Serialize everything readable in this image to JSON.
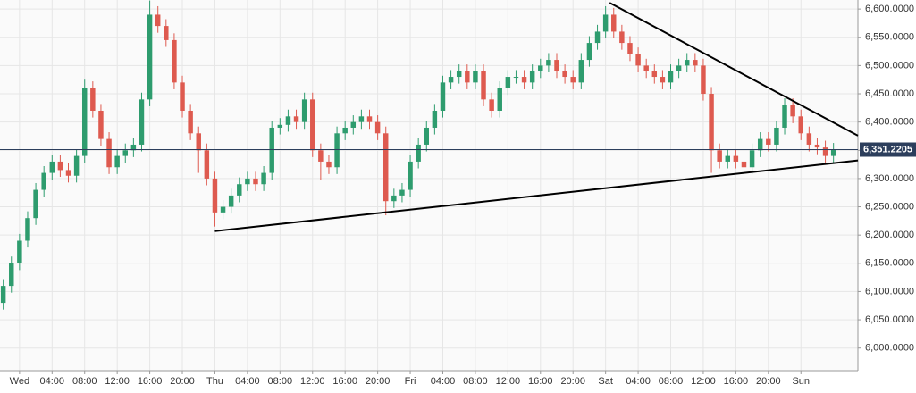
{
  "chart_data": {
    "type": "candlestick",
    "colors": {
      "up": "#2e9c6e",
      "down": "#de5a4f"
    },
    "xlim": [
      -2.4,
      103
    ],
    "ylim": [
      5960,
      6616
    ],
    "grid": true,
    "xticks": [
      {
        "value": 0,
        "label": "Wed"
      },
      {
        "value": 4,
        "label": "04:00"
      },
      {
        "value": 8,
        "label": "08:00"
      },
      {
        "value": 12,
        "label": "12:00"
      },
      {
        "value": 16,
        "label": "16:00"
      },
      {
        "value": 20,
        "label": "20:00"
      },
      {
        "value": 24,
        "label": "Thu"
      },
      {
        "value": 28,
        "label": "04:00"
      },
      {
        "value": 32,
        "label": "08:00"
      },
      {
        "value": 36,
        "label": "12:00"
      },
      {
        "value": 40,
        "label": "16:00"
      },
      {
        "value": 44,
        "label": "20:00"
      },
      {
        "value": 48,
        "label": "Fri"
      },
      {
        "value": 52,
        "label": "04:00"
      },
      {
        "value": 56,
        "label": "08:00"
      },
      {
        "value": 60,
        "label": "12:00"
      },
      {
        "value": 64,
        "label": "16:00"
      },
      {
        "value": 68,
        "label": "20:00"
      },
      {
        "value": 72,
        "label": "Sat"
      },
      {
        "value": 76,
        "label": "04:00"
      },
      {
        "value": 80,
        "label": "08:00"
      },
      {
        "value": 84,
        "label": "12:00"
      },
      {
        "value": 88,
        "label": "16:00"
      },
      {
        "value": 92,
        "label": "20:00"
      },
      {
        "value": 96,
        "label": "Sun"
      }
    ],
    "yticks": [
      {
        "value": 6000,
        "label": "6,000.0000"
      },
      {
        "value": 6050,
        "label": "6,050.0000"
      },
      {
        "value": 6100,
        "label": "6,100.0000"
      },
      {
        "value": 6150,
        "label": "6,150.0000"
      },
      {
        "value": 6200,
        "label": "6,200.0000"
      },
      {
        "value": 6250,
        "label": "6,250.0000"
      },
      {
        "value": 6300,
        "label": "6,300.0000"
      },
      {
        "value": 6350,
        "label": "6,350.0000"
      },
      {
        "value": 6400,
        "label": "6,400.0000"
      },
      {
        "value": 6450,
        "label": "6,450.0000"
      },
      {
        "value": 6500,
        "label": "6,500.0000"
      },
      {
        "value": 6550,
        "label": "6,550.0000"
      },
      {
        "value": 6600,
        "label": "6,600.0000"
      }
    ],
    "current_price": {
      "value": 6351.2205,
      "label": "6,351.2205"
    },
    "trendlines": [
      {
        "x": [
          24,
          103
        ],
        "y": [
          6207,
          6332
        ]
      },
      {
        "x": [
          72.5,
          103
        ],
        "y": [
          6611,
          6376
        ]
      }
    ],
    "x": [
      -2,
      -1,
      0,
      1,
      2,
      3,
      4,
      5,
      6,
      7,
      8,
      9,
      10,
      11,
      12,
      13,
      14,
      15,
      16,
      17,
      18,
      19,
      20,
      21,
      22,
      23,
      24,
      25,
      26,
      27,
      28,
      29,
      30,
      31,
      32,
      33,
      34,
      35,
      36,
      37,
      38,
      39,
      40,
      41,
      42,
      43,
      44,
      45,
      46,
      47,
      48,
      49,
      50,
      51,
      52,
      53,
      54,
      55,
      56,
      57,
      58,
      59,
      60,
      61,
      62,
      63,
      64,
      65,
      66,
      67,
      68,
      69,
      70,
      71,
      72,
      73,
      74,
      75,
      76,
      77,
      78,
      79,
      80,
      81,
      82,
      83,
      84,
      85,
      86,
      87,
      88,
      89,
      90,
      91,
      92,
      93,
      94,
      95,
      96,
      97,
      98,
      99,
      100
    ],
    "open": [
      6080,
      6110,
      6150,
      6190,
      6230,
      6280,
      6310,
      6330,
      6315,
      6305,
      6340,
      6460,
      6420,
      6370,
      6320,
      6340,
      6350,
      6360,
      6440,
      6590,
      6570,
      6545,
      6470,
      6420,
      6380,
      6350,
      6300,
      6240,
      6250,
      6270,
      6290,
      6300,
      6290,
      6310,
      6390,
      6395,
      6410,
      6400,
      6440,
      6350,
      6330,
      6320,
      6380,
      6390,
      6400,
      6410,
      6400,
      6380,
      6260,
      6270,
      6280,
      6330,
      6360,
      6390,
      6420,
      6470,
      6480,
      6490,
      6470,
      6490,
      6440,
      6420,
      6460,
      6480,
      6480,
      6470,
      6490,
      6500,
      6510,
      6490,
      6480,
      6470,
      6510,
      6540,
      6560,
      6590,
      6560,
      6540,
      6520,
      6500,
      6490,
      6480,
      6470,
      6490,
      6500,
      6510,
      6500,
      6450,
      6350,
      6330,
      6340,
      6330,
      6320,
      6350,
      6370,
      6360,
      6390,
      6430,
      6410,
      6380,
      6360,
      6355,
      6340
    ],
    "high": [
      6122,
      6162,
      6202,
      6242,
      6292,
      6322,
      6342,
      6342,
      6327,
      6352,
      6475,
      6472,
      6432,
      6382,
      6352,
      6362,
      6372,
      6452,
      6615,
      6605,
      6582,
      6557,
      6482,
      6432,
      6392,
      6362,
      6312,
      6262,
      6282,
      6302,
      6312,
      6312,
      6322,
      6402,
      6407,
      6422,
      6422,
      6452,
      6452,
      6362,
      6342,
      6392,
      6402,
      6412,
      6422,
      6422,
      6412,
      6392,
      6282,
      6292,
      6342,
      6372,
      6402,
      6432,
      6482,
      6492,
      6502,
      6502,
      6502,
      6502,
      6452,
      6472,
      6492,
      6492,
      6492,
      6502,
      6512,
      6522,
      6522,
      6502,
      6492,
      6522,
      6552,
      6572,
      6605,
      6602,
      6572,
      6552,
      6532,
      6512,
      6502,
      6492,
      6502,
      6512,
      6522,
      6522,
      6512,
      6462,
      6362,
      6352,
      6352,
      6342,
      6362,
      6382,
      6382,
      6402,
      6442,
      6442,
      6422,
      6392,
      6372,
      6367,
      6363
    ],
    "low": [
      6068,
      6098,
      6138,
      6178,
      6218,
      6268,
      6298,
      6303,
      6293,
      6293,
      6328,
      6408,
      6358,
      6308,
      6308,
      6328,
      6338,
      6348,
      6428,
      6558,
      6533,
      6458,
      6408,
      6368,
      6310,
      6288,
      6215,
      6228,
      6238,
      6258,
      6278,
      6278,
      6278,
      6298,
      6378,
      6383,
      6388,
      6388,
      6338,
      6298,
      6308,
      6308,
      6368,
      6378,
      6388,
      6388,
      6368,
      6235,
      6248,
      6258,
      6268,
      6318,
      6348,
      6378,
      6408,
      6458,
      6468,
      6458,
      6458,
      6428,
      6408,
      6408,
      6448,
      6468,
      6458,
      6458,
      6478,
      6488,
      6478,
      6468,
      6458,
      6458,
      6498,
      6528,
      6548,
      6548,
      6528,
      6508,
      6488,
      6478,
      6468,
      6458,
      6458,
      6478,
      6488,
      6488,
      6438,
      6310,
      6318,
      6318,
      6318,
      6308,
      6308,
      6338,
      6348,
      6348,
      6378,
      6398,
      6368,
      6348,
      6343,
      6328,
      6328
    ],
    "close": [
      6110,
      6150,
      6190,
      6230,
      6280,
      6310,
      6330,
      6315,
      6305,
      6340,
      6460,
      6420,
      6370,
      6320,
      6340,
      6350,
      6360,
      6440,
      6590,
      6570,
      6545,
      6470,
      6420,
      6380,
      6350,
      6300,
      6240,
      6250,
      6270,
      6290,
      6300,
      6290,
      6310,
      6390,
      6395,
      6410,
      6400,
      6440,
      6350,
      6330,
      6320,
      6380,
      6390,
      6400,
      6410,
      6400,
      6380,
      6260,
      6270,
      6280,
      6330,
      6360,
      6390,
      6420,
      6470,
      6480,
      6490,
      6470,
      6490,
      6440,
      6420,
      6460,
      6480,
      6480,
      6470,
      6490,
      6500,
      6510,
      6490,
      6480,
      6470,
      6510,
      6540,
      6560,
      6590,
      6560,
      6540,
      6520,
      6500,
      6490,
      6480,
      6470,
      6490,
      6500,
      6510,
      6500,
      6450,
      6350,
      6330,
      6340,
      6330,
      6320,
      6350,
      6370,
      6360,
      6390,
      6430,
      6410,
      6380,
      6360,
      6355,
      6340,
      6351
    ]
  }
}
